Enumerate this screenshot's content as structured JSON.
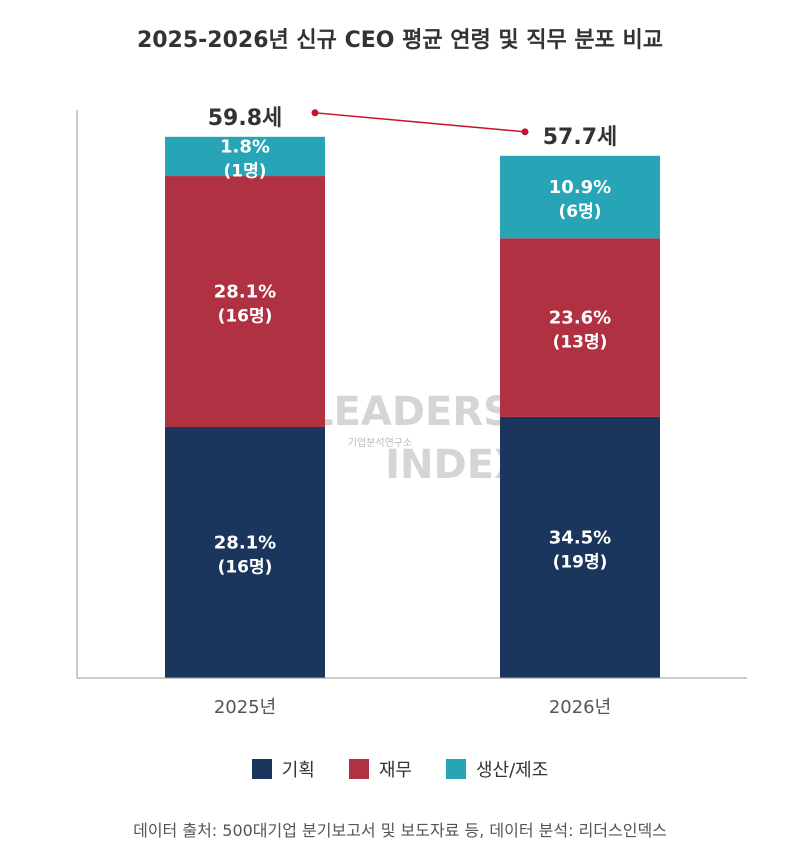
{
  "title": "2025-2026년 신규 CEO 평균 연령 및 직무 분포 비교",
  "chart_data": {
    "type": "bar",
    "stacked": true,
    "categories": [
      "2025년",
      "2026년"
    ],
    "series": [
      {
        "name": "기획",
        "color": "#1b365d",
        "values": [
          28.1,
          34.5
        ],
        "labels": [
          "28.1%",
          "34.5%"
        ],
        "counts": [
          "(16명)",
          "(19명)"
        ]
      },
      {
        "name": "재무",
        "color": "#b03142",
        "values": [
          28.1,
          23.6
        ],
        "labels": [
          "28.1%",
          "23.6%"
        ],
        "counts": [
          "(16명)",
          "(13명)"
        ]
      },
      {
        "name": "생산/제조",
        "color": "#27a4b6",
        "values": [
          1.8,
          10.9
        ],
        "labels": [
          "1.8%",
          "10.9%"
        ],
        "counts": [
          "(1명)",
          "(6명)"
        ]
      }
    ],
    "average_age": {
      "values": [
        59.8,
        57.7
      ],
      "labels": [
        "59.8세",
        "57.7세"
      ],
      "color": "#c8102e"
    },
    "legend_position": "bottom",
    "grid": false
  },
  "watermark": "LEADERS INDEX 기업분석연구소",
  "source": "데이터 출처: 500대기업 분기보고서 및 보도자료 등, 데이터 분석: 리더스인덱스"
}
